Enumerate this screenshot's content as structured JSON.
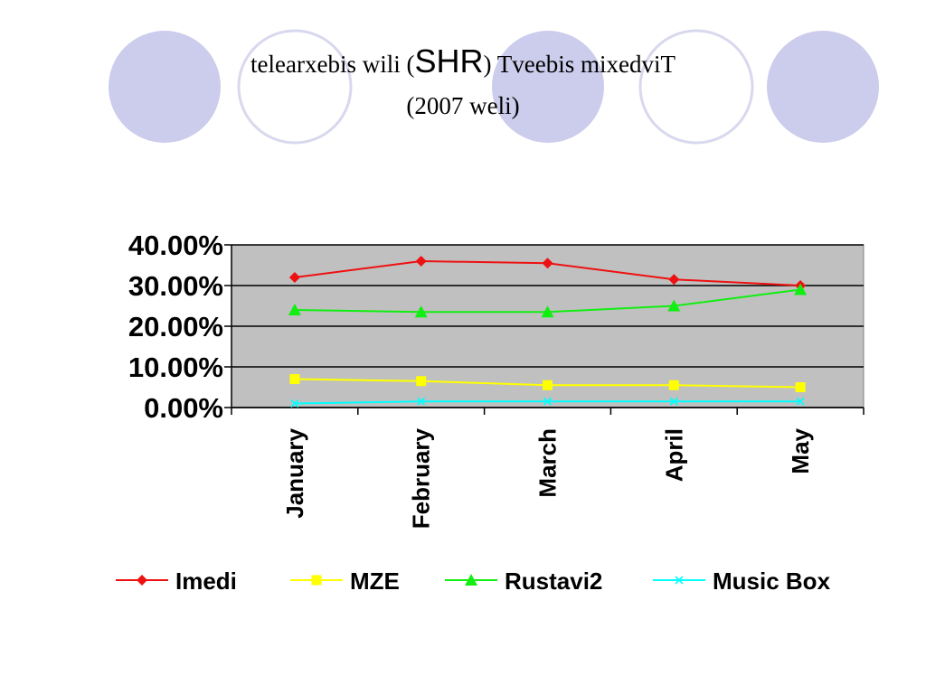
{
  "slide": {
    "title_pre": "telearxebis wili (",
    "title_big": "SHR",
    "title_post": ") Tveebis mixedviT",
    "title_line2": "(2007 weli)"
  },
  "colors": {
    "circle_fill": "#ccccec",
    "circle_stroke": "#d8d8ee",
    "plot_bg": "#c0c0c0"
  },
  "chart_data": {
    "type": "line",
    "categories": [
      "January",
      "February",
      "March",
      "April",
      "May"
    ],
    "ylim": [
      0,
      40
    ],
    "yticks": [
      "0.00%",
      "10.00%",
      "20.00%",
      "30.00%",
      "40.00%"
    ],
    "gridlines": true,
    "legend_position": "bottom",
    "series": [
      {
        "name": "Imedi",
        "color": "#ee1111",
        "marker": "diamond",
        "values": [
          32.0,
          36.0,
          35.5,
          31.5,
          30.0
        ]
      },
      {
        "name": "MZE",
        "color": "#ffff00",
        "marker": "square",
        "values": [
          7.0,
          6.5,
          5.5,
          5.5,
          5.0
        ]
      },
      {
        "name": "Rustavi2",
        "color": "#11ee11",
        "marker": "triangle",
        "values": [
          24.0,
          23.5,
          23.5,
          25.0,
          29.0
        ]
      },
      {
        "name": "Music Box",
        "color": "#00ffff",
        "marker": "x",
        "values": [
          1.0,
          1.5,
          1.5,
          1.5,
          1.5
        ]
      }
    ]
  }
}
